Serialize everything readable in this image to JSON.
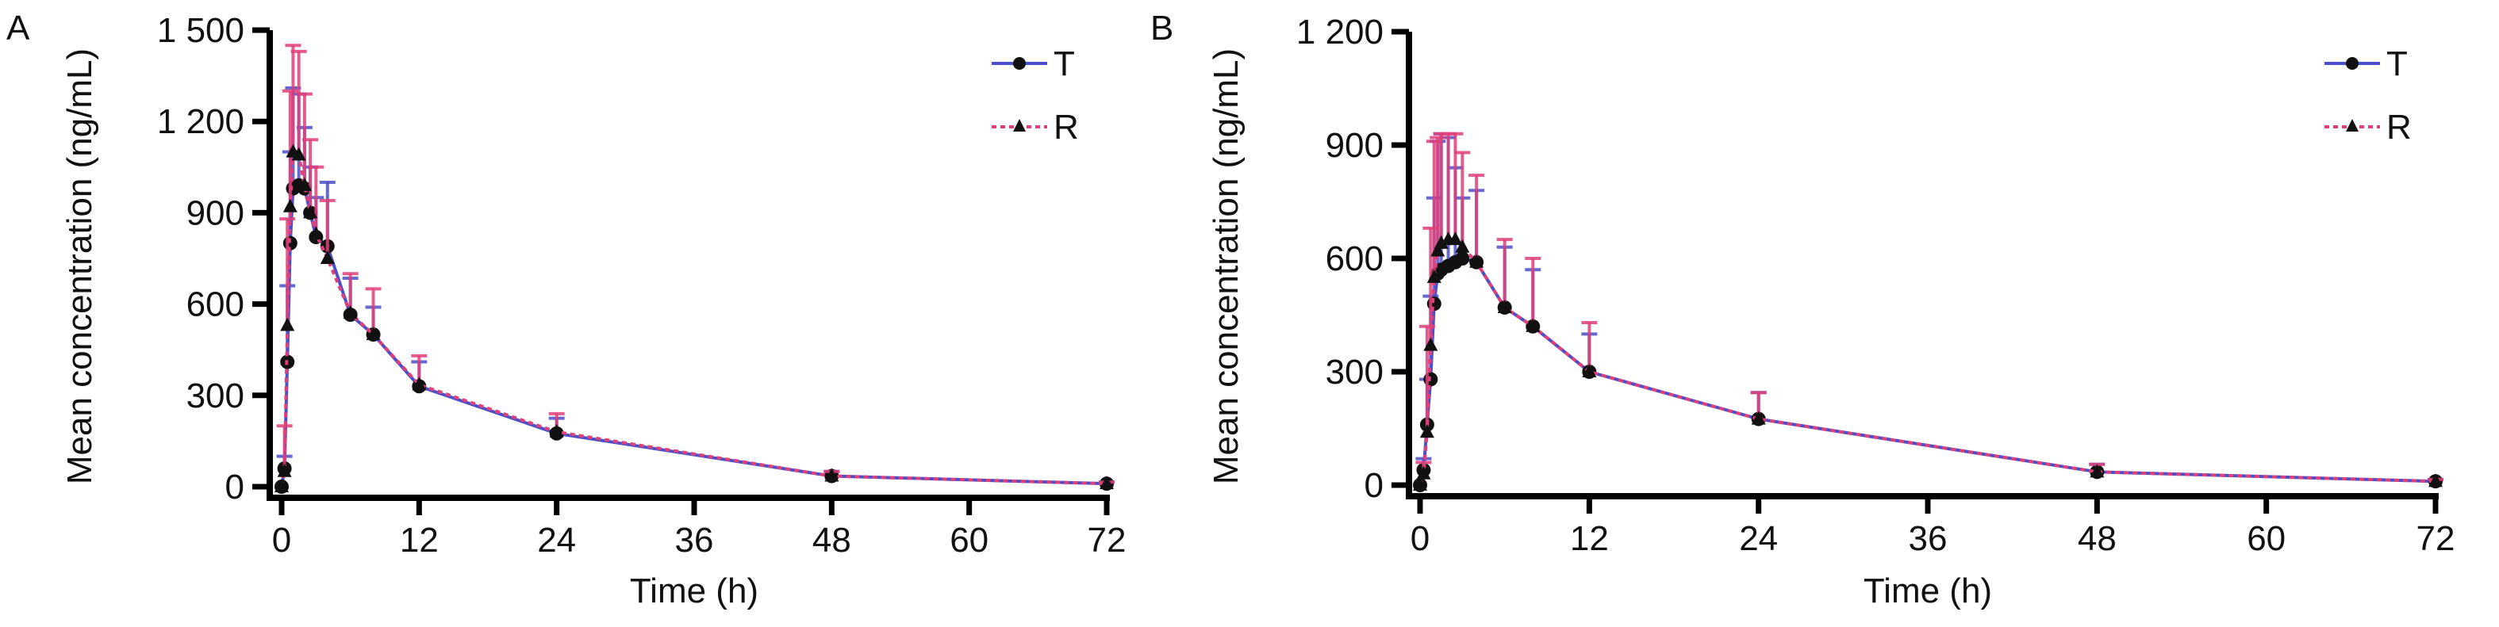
{
  "chart_data": [
    {
      "type": "line",
      "panel_label": "A",
      "xlabel": "Time (h)",
      "ylabel": "Mean concentration (ng/mL)",
      "xlim": [
        0,
        72
      ],
      "ylim": [
        0,
        1500
      ],
      "xticks": [
        0,
        12,
        24,
        36,
        48,
        60,
        72
      ],
      "yticks": [
        0,
        300,
        600,
        900,
        1200,
        1500
      ],
      "ytick_labels": [
        "0",
        "300",
        "600",
        "900",
        "1 200",
        "1 500"
      ],
      "legend_position": "top-right",
      "series": [
        {
          "name": "T",
          "color": "#4b4fc8",
          "marker": "circle",
          "style": "solid",
          "x": [
            0,
            0.25,
            0.5,
            0.75,
            1,
            1.5,
            2,
            2.5,
            3,
            4,
            6,
            8,
            12,
            24,
            48,
            72
          ],
          "y": [
            0,
            60,
            410,
            800,
            980,
            990,
            980,
            900,
            820,
            790,
            565,
            500,
            330,
            175,
            35,
            10
          ],
          "sd": [
            0,
            40,
            250,
            300,
            330,
            300,
            200,
            150,
            130,
            210,
            120,
            90,
            80,
            50,
            15,
            5
          ]
        },
        {
          "name": "R",
          "color": "#e0407a",
          "marker": "triangle",
          "style": "dotted",
          "x": [
            0,
            0.25,
            0.5,
            0.75,
            1,
            1.5,
            2,
            2.5,
            3,
            4,
            6,
            8,
            12,
            24,
            48,
            72
          ],
          "y": [
            0,
            50,
            530,
            920,
            1100,
            1090,
            990,
            900,
            830,
            750,
            570,
            500,
            335,
            180,
            35,
            10
          ],
          "sd": [
            0,
            150,
            350,
            380,
            350,
            340,
            300,
            240,
            220,
            190,
            130,
            150,
            95,
            60,
            15,
            5
          ]
        }
      ]
    },
    {
      "type": "line",
      "panel_label": "B",
      "xlabel": "Time (h)",
      "ylabel": "Mean concentration (ng/mL)",
      "xlim": [
        0,
        72
      ],
      "ylim": [
        0,
        1200
      ],
      "xticks": [
        0,
        12,
        24,
        36,
        48,
        60,
        72
      ],
      "yticks": [
        0,
        300,
        600,
        900,
        1200
      ],
      "ytick_labels": [
        "0",
        "300",
        "600",
        "900",
        "1 200"
      ],
      "legend_position": "top-right",
      "series": [
        {
          "name": "T",
          "color": "#4b4fc8",
          "marker": "circle",
          "style": "solid",
          "x": [
            0,
            0.25,
            0.5,
            0.75,
            1,
            1.25,
            1.5,
            2,
            2.5,
            3,
            4,
            6,
            8,
            12,
            24,
            48,
            72
          ],
          "y": [
            0,
            40,
            160,
            280,
            480,
            560,
            570,
            580,
            590,
            600,
            590,
            470,
            420,
            300,
            175,
            35,
            10
          ],
          "sd": [
            0,
            30,
            120,
            220,
            280,
            350,
            360,
            340,
            250,
            160,
            190,
            160,
            150,
            100,
            70,
            20,
            5
          ]
        },
        {
          "name": "R",
          "color": "#e0407a",
          "marker": "triangle",
          "style": "dotted",
          "x": [
            0,
            0.25,
            0.5,
            0.75,
            1,
            1.25,
            1.5,
            2,
            2.5,
            3,
            4,
            6,
            8,
            12,
            24,
            48,
            72
          ],
          "y": [
            0,
            30,
            140,
            370,
            550,
            620,
            640,
            650,
            650,
            630,
            590,
            470,
            420,
            300,
            175,
            35,
            10
          ],
          "sd": [
            0,
            30,
            280,
            310,
            360,
            300,
            290,
            280,
            280,
            250,
            230,
            180,
            180,
            130,
            70,
            20,
            5
          ]
        }
      ]
    }
  ]
}
